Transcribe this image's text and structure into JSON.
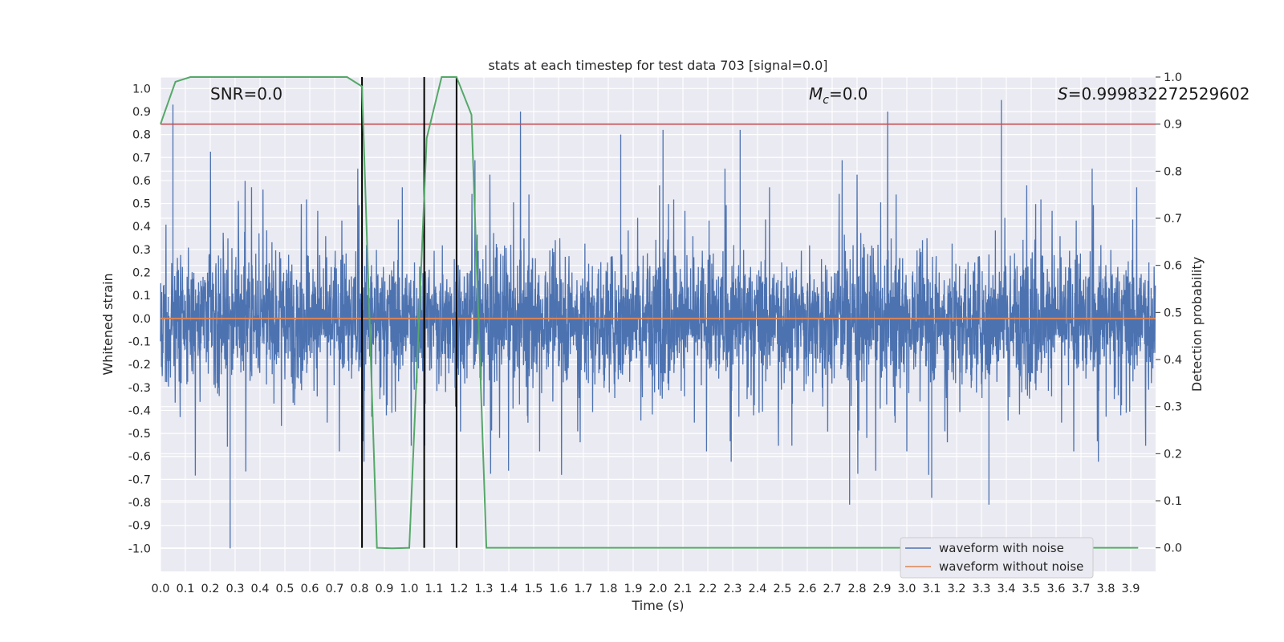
{
  "chart_data": {
    "type": "line",
    "title": "stats at each timestep for test data 703 [signal=0.0]",
    "xlabel": "Time (s)",
    "ylabel_left": "Whitened strain",
    "ylabel_right": "Detection probability",
    "xlim": [
      0.0,
      4.0
    ],
    "ylim_left": [
      -1.1,
      1.05
    ],
    "ylim_right": [
      -0.05,
      1.0
    ],
    "grid": true,
    "x_ticks": [
      "0.0",
      "0.1",
      "0.2",
      "0.3",
      "0.4",
      "0.5",
      "0.6",
      "0.7",
      "0.8",
      "0.9",
      "1.0",
      "1.1",
      "1.2",
      "1.3",
      "1.4",
      "1.5",
      "1.6",
      "1.7",
      "1.8",
      "1.9",
      "2.0",
      "2.1",
      "2.2",
      "2.3",
      "2.4",
      "2.5",
      "2.6",
      "2.7",
      "2.8",
      "2.9",
      "3.0",
      "3.1",
      "3.2",
      "3.3",
      "3.4",
      "3.5",
      "3.6",
      "3.7",
      "3.8",
      "3.9"
    ],
    "y_ticks_left": [
      "1.0",
      "0.9",
      "0.8",
      "0.7",
      "0.6",
      "0.5",
      "0.4",
      "0.3",
      "0.2",
      "0.1",
      "0.0",
      "-0.1",
      "-0.2",
      "-0.3",
      "-0.4",
      "-0.5",
      "-0.6",
      "-0.7",
      "-0.8",
      "-0.9",
      "-1.0"
    ],
    "y_ticks_right": [
      "0.0",
      "0.1",
      "0.2",
      "0.3",
      "0.4",
      "0.5",
      "0.6",
      "0.7",
      "0.8",
      "0.9",
      "1.0"
    ],
    "annotations": {
      "snr": "SNR=0.0",
      "mc_symbol": "M",
      "mc_sub": "c",
      "mc_value": "=0.0",
      "s_symbol": "S",
      "s_value": "=0.999832272529602"
    },
    "series": [
      {
        "name": "waveform with noise",
        "color": "#4c72b0",
        "axis": "left",
        "note": "dense whitened strain noise, roughly within [-1.0, 0.95]",
        "peaks": [
          [
            0.05,
            0.93
          ],
          [
            0.28,
            -1.0
          ],
          [
            1.85,
            0.8
          ],
          [
            2.02,
            0.82
          ],
          [
            2.33,
            0.82
          ],
          [
            2.77,
            -0.81
          ],
          [
            3.1,
            -0.78
          ],
          [
            3.33,
            -0.81
          ],
          [
            3.38,
            0.95
          ]
        ]
      },
      {
        "name": "waveform without noise",
        "color": "#dd8452",
        "axis": "left",
        "value": 0.0
      },
      {
        "name": "detection probability",
        "color": "#55a868",
        "axis": "right",
        "x": [
          0.0,
          0.06,
          0.12,
          0.2,
          0.3,
          0.5,
          0.7,
          0.75,
          0.81,
          0.87,
          0.93,
          1.0,
          1.07,
          1.13,
          1.19,
          1.25,
          1.31,
          1.5,
          2.0,
          3.0,
          3.93
        ],
        "y": [
          0.9,
          0.99,
          1.0,
          1.0,
          1.0,
          1.0,
          1.0,
          1.0,
          0.98,
          0.0,
          -0.001,
          0.0,
          0.87,
          1.0,
          1.0,
          0.92,
          0.0,
          0.0,
          0.0,
          0.0,
          0.0
        ]
      },
      {
        "name": "threshold",
        "color": "#c44e52",
        "axis": "right",
        "value": 0.9
      }
    ],
    "vertical_lines_x": [
      0.81,
      1.06,
      1.19
    ],
    "vertical_line_color": "#000000",
    "legend": {
      "position": "lower right",
      "items": [
        "waveform with noise",
        "waveform without noise"
      ]
    }
  }
}
